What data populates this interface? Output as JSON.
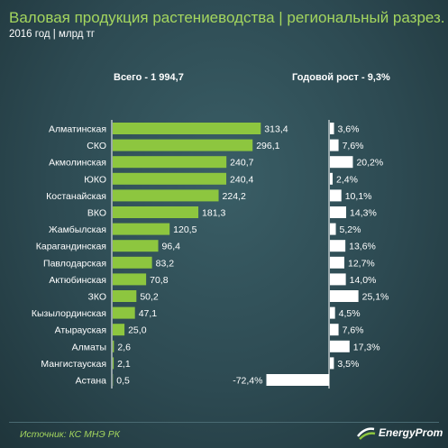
{
  "header": {
    "title": "Валовая продукция растениеводства  | региональный разрез.",
    "subtitle": "2016 год | млрд тг"
  },
  "colors": {
    "left_bar": "#8dc63f",
    "right_bar": "#ffffff",
    "title": "#a4d65e",
    "background": "#2d4a52"
  },
  "chart_data": [
    {
      "type": "bar",
      "orientation": "horizontal",
      "title": "Всего - 1 994,7",
      "categories": [
        "Алматинская",
        "СКО",
        "Акмолинская",
        "ЮКО",
        "Костанайская",
        "ВКО",
        "Жамбылская",
        "Карагандинская",
        "Павлодарская",
        "Актюбинская",
        "ЗКО",
        "Кызылординская",
        "Атырауская",
        "Алматы",
        "Мангистауская",
        "Астана"
      ],
      "values": [
        313.4,
        296.1,
        240.7,
        240.4,
        224.2,
        181.3,
        120.5,
        96.4,
        83.2,
        70.8,
        50.2,
        47.1,
        25.0,
        2.6,
        2.1,
        0.5
      ],
      "value_labels": [
        "313,4",
        "296,1",
        "240,7",
        "240,4",
        "224,2",
        "181,3",
        "120,5",
        "96,4",
        "83,2",
        "70,8",
        "50,2",
        "47,1",
        "25,0",
        "2,6",
        "2,1",
        "0,5"
      ],
      "xlim": [
        0,
        330
      ]
    },
    {
      "type": "bar",
      "orientation": "horizontal",
      "title": "Годовой рост - 9,3%",
      "categories": [
        "Алматинская",
        "СКО",
        "Акмолинская",
        "ЮКО",
        "Костанайская",
        "ВКО",
        "Жамбылская",
        "Карагандинская",
        "Павлодарская",
        "Актюбинская",
        "ЗКО",
        "Кызылординская",
        "Атырауская",
        "Алматы",
        "Мангистауская",
        "Астана"
      ],
      "values": [
        3.6,
        7.6,
        20.2,
        2.4,
        10.1,
        14.3,
        5.2,
        13.6,
        12.7,
        14.0,
        25.1,
        4.5,
        7.6,
        17.3,
        3.5,
        -72.4
      ],
      "value_labels": [
        "3,6%",
        "7,6%",
        "20,2%",
        "2,4%",
        "10,1%",
        "14,3%",
        "5,2%",
        "13,6%",
        "12,7%",
        "14,0%",
        "25,1%",
        "4,5%",
        "7,6%",
        "17,3%",
        "3,5%",
        "-72,4%"
      ]
    }
  ],
  "footer": {
    "source": "Источник: КС МНЭ РК",
    "logo_text": "EnergyProm"
  }
}
